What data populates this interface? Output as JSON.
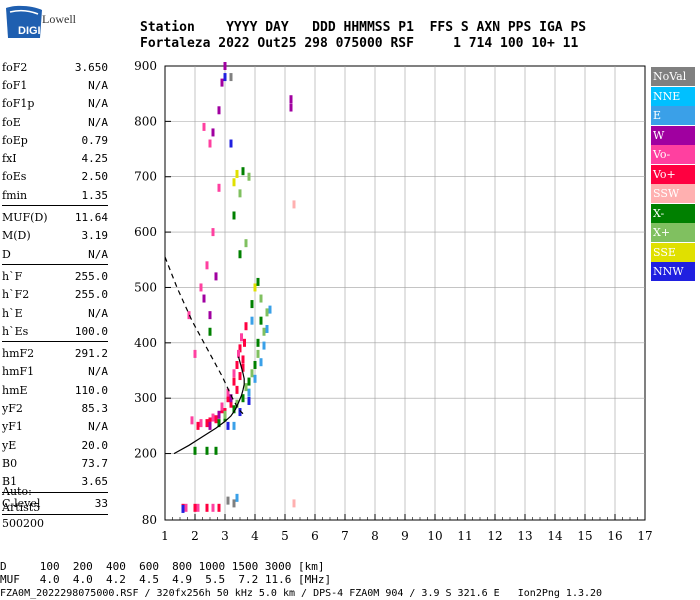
{
  "logo": {
    "brand": "Lowell",
    "product": "DIGISONDE"
  },
  "header": {
    "line1": "Station    YYYY DAY   DDD HHMMSS P1  FFS S AXN PPS IGA PS",
    "line2": "Fortaleza 2022 Out25 298 075000 RSF     1 714 100 10+ 11"
  },
  "params_group1": [
    {
      "name": "foF2",
      "value": "3.650"
    },
    {
      "name": "foF1",
      "value": "N/A"
    },
    {
      "name": "foF1p",
      "value": "N/A"
    },
    {
      "name": "foE",
      "value": "N/A"
    },
    {
      "name": "foEp",
      "value": "0.79"
    },
    {
      "name": "fxI",
      "value": "4.25"
    },
    {
      "name": "foEs",
      "value": "2.50"
    },
    {
      "name": "fmin",
      "value": "1.35"
    }
  ],
  "params_group2": [
    {
      "name": "MUF(D)",
      "value": "11.64"
    },
    {
      "name": "M(D)",
      "value": "3.19"
    },
    {
      "name": "D",
      "value": "N/A"
    }
  ],
  "params_group3": [
    {
      "name": "h`F",
      "value": "255.0"
    },
    {
      "name": "h`F2",
      "value": "255.0"
    },
    {
      "name": "h`E",
      "value": "N/A"
    },
    {
      "name": "h`Es",
      "value": "100.0"
    }
  ],
  "params_group4": [
    {
      "name": "hmF2",
      "value": "291.2"
    },
    {
      "name": "hmF1",
      "value": "N/A"
    },
    {
      "name": "hmE",
      "value": "110.0"
    },
    {
      "name": "yF2",
      "value": "85.3"
    },
    {
      "name": "yF1",
      "value": "N/A"
    },
    {
      "name": "yE",
      "value": "20.0"
    },
    {
      "name": "B0",
      "value": "73.7"
    },
    {
      "name": "B1",
      "value": "3.65"
    }
  ],
  "params_group5": [
    {
      "name": "C-level",
      "value": "33"
    }
  ],
  "autoscaling": {
    "line1": "Auto:",
    "line2": "Artist5",
    "line3": "500200"
  },
  "legend": [
    {
      "label": "NoVal",
      "color": "#808080"
    },
    {
      "label": "NNE",
      "color": "#00c0ff"
    },
    {
      "label": "E",
      "color": "#3aa0e8"
    },
    {
      "label": "W",
      "color": "#a000a0"
    },
    {
      "label": "Vo-",
      "color": "#ff40a0"
    },
    {
      "label": "Vo+",
      "color": "#ff0040"
    },
    {
      "label": "SSW",
      "color": "#ffb0b0"
    },
    {
      "label": "X-",
      "color": "#008000"
    },
    {
      "label": "X+",
      "color": "#80c060"
    },
    {
      "label": "SSE",
      "color": "#e0e000"
    },
    {
      "label": "NNW",
      "color": "#2020e0"
    }
  ],
  "footer": {
    "distance_row": "D     100  200  400  600  800 1000 1500 3000 [km]",
    "muf_row": "MUF   4.0  4.0  4.2  4.5  4.9  5.5  7.2 11.6 [MHz]",
    "file_info": "FZA0M_2022298075000.RSF / 320fx256h 50 kHz 5.0 km / DPS-4 FZA0M 904 / 3.9 S 321.6 E   Ion2Png 1.3.20"
  },
  "chart_data": {
    "type": "scatter",
    "title": "",
    "xlabel": "",
    "ylabel": "",
    "xlim": [
      1,
      17
    ],
    "ylim": [
      80,
      900
    ],
    "x_ticks": [
      1,
      2,
      3,
      4,
      5,
      6,
      7,
      8,
      9,
      10,
      11,
      12,
      13,
      14,
      15,
      16,
      17
    ],
    "y_ticks": [
      80,
      200,
      300,
      400,
      500,
      600,
      700,
      800,
      900
    ],
    "grid": true,
    "series": [
      {
        "name": "Vo+",
        "color": "#ff0040",
        "points": [
          [
            2.1,
            250
          ],
          [
            2.4,
            255
          ],
          [
            2.7,
            262
          ],
          [
            3.0,
            275
          ],
          [
            3.2,
            290
          ],
          [
            3.4,
            315
          ],
          [
            3.5,
            340
          ],
          [
            3.6,
            370
          ],
          [
            3.65,
            400
          ],
          [
            3.7,
            430
          ],
          [
            3.4,
            360
          ],
          [
            3.3,
            330
          ],
          [
            3.1,
            300
          ],
          [
            2.9,
            280
          ],
          [
            2.5,
            258
          ],
          [
            3.5,
            390
          ],
          [
            3.6,
            355
          ],
          [
            1.6,
            102
          ],
          [
            2.0,
            102
          ],
          [
            2.4,
            102
          ],
          [
            2.8,
            102
          ]
        ]
      },
      {
        "name": "Vo-",
        "color": "#ff40a0",
        "points": [
          [
            2.2,
            255
          ],
          [
            2.6,
            265
          ],
          [
            2.9,
            285
          ],
          [
            3.1,
            310
          ],
          [
            3.3,
            345
          ],
          [
            3.45,
            380
          ],
          [
            3.55,
            410
          ],
          [
            2.4,
            540
          ],
          [
            2.6,
            600
          ],
          [
            2.8,
            680
          ],
          [
            2.5,
            760
          ],
          [
            2.3,
            790
          ],
          [
            2.2,
            500
          ],
          [
            2.0,
            380
          ],
          [
            1.8,
            450
          ],
          [
            1.9,
            260
          ],
          [
            1.7,
            102
          ],
          [
            2.1,
            102
          ],
          [
            2.6,
            102
          ]
        ]
      },
      {
        "name": "X-",
        "color": "#008000",
        "points": [
          [
            2.8,
            255
          ],
          [
            3.0,
            265
          ],
          [
            3.3,
            280
          ],
          [
            3.6,
            300
          ],
          [
            3.8,
            330
          ],
          [
            4.0,
            360
          ],
          [
            4.1,
            400
          ],
          [
            4.2,
            440
          ],
          [
            3.9,
            470
          ],
          [
            4.1,
            510
          ],
          [
            3.5,
            560
          ],
          [
            3.3,
            630
          ],
          [
            3.6,
            710
          ],
          [
            2.0,
            205
          ],
          [
            2.4,
            205
          ],
          [
            2.7,
            205
          ],
          [
            2.5,
            420
          ]
        ]
      },
      {
        "name": "X+",
        "color": "#80c060",
        "points": [
          [
            3.0,
            270
          ],
          [
            3.4,
            290
          ],
          [
            3.7,
            320
          ],
          [
            3.9,
            345
          ],
          [
            4.1,
            380
          ],
          [
            4.3,
            420
          ],
          [
            4.4,
            455
          ],
          [
            3.7,
            580
          ],
          [
            3.5,
            670
          ],
          [
            3.8,
            700
          ],
          [
            4.2,
            480
          ]
        ]
      },
      {
        "name": "E",
        "color": "#3aa0e8",
        "points": [
          [
            3.8,
            310
          ],
          [
            4.0,
            335
          ],
          [
            4.2,
            365
          ],
          [
            4.3,
            395
          ],
          [
            4.4,
            425
          ],
          [
            4.5,
            460
          ],
          [
            3.9,
            440
          ],
          [
            3.3,
            250
          ],
          [
            3.4,
            120
          ]
        ]
      },
      {
        "name": "W",
        "color": "#a000a0",
        "points": [
          [
            2.5,
            250
          ],
          [
            2.8,
            270
          ],
          [
            3.2,
            300
          ],
          [
            2.5,
            450
          ],
          [
            2.7,
            520
          ],
          [
            2.6,
            780
          ],
          [
            2.8,
            820
          ],
          [
            2.9,
            870
          ],
          [
            3.0,
            900
          ],
          [
            5.2,
            840
          ],
          [
            5.2,
            825
          ],
          [
            2.3,
            480
          ]
        ]
      },
      {
        "name": "NNW",
        "color": "#2020e0",
        "points": [
          [
            3.1,
            250
          ],
          [
            3.5,
            275
          ],
          [
            3.8,
            295
          ],
          [
            3.0,
            880
          ],
          [
            3.2,
            760
          ],
          [
            1.6,
            100
          ]
        ]
      },
      {
        "name": "SSE",
        "color": "#e0e000",
        "points": [
          [
            3.4,
            705
          ],
          [
            3.3,
            690
          ],
          [
            4.0,
            500
          ]
        ]
      },
      {
        "name": "SSW",
        "color": "#ffb0b0",
        "points": [
          [
            5.3,
            650
          ],
          [
            5.3,
            110
          ]
        ]
      },
      {
        "name": "NoVal",
        "color": "#808080",
        "points": [
          [
            3.2,
            880
          ],
          [
            3.3,
            110
          ],
          [
            3.1,
            115
          ]
        ]
      }
    ],
    "curves": [
      {
        "name": "true-height profile",
        "style": "solid",
        "points": [
          [
            1.3,
            200
          ],
          [
            1.8,
            215
          ],
          [
            2.3,
            232
          ],
          [
            2.7,
            246
          ],
          [
            3.0,
            258
          ],
          [
            3.2,
            268
          ],
          [
            3.35,
            280
          ],
          [
            3.45,
            292
          ],
          [
            3.55,
            305
          ],
          [
            3.6,
            315
          ],
          [
            3.64,
            325
          ],
          [
            3.64,
            335
          ],
          [
            3.6,
            345
          ],
          [
            3.55,
            355
          ],
          [
            3.5,
            365
          ],
          [
            3.45,
            375
          ]
        ]
      },
      {
        "name": "model profile",
        "style": "dashed",
        "points": [
          [
            1.0,
            555
          ],
          [
            1.4,
            500
          ],
          [
            1.9,
            440
          ],
          [
            2.4,
            390
          ],
          [
            2.9,
            340
          ],
          [
            3.25,
            300
          ],
          [
            3.45,
            280
          ],
          [
            3.6,
            272
          ]
        ]
      }
    ]
  }
}
